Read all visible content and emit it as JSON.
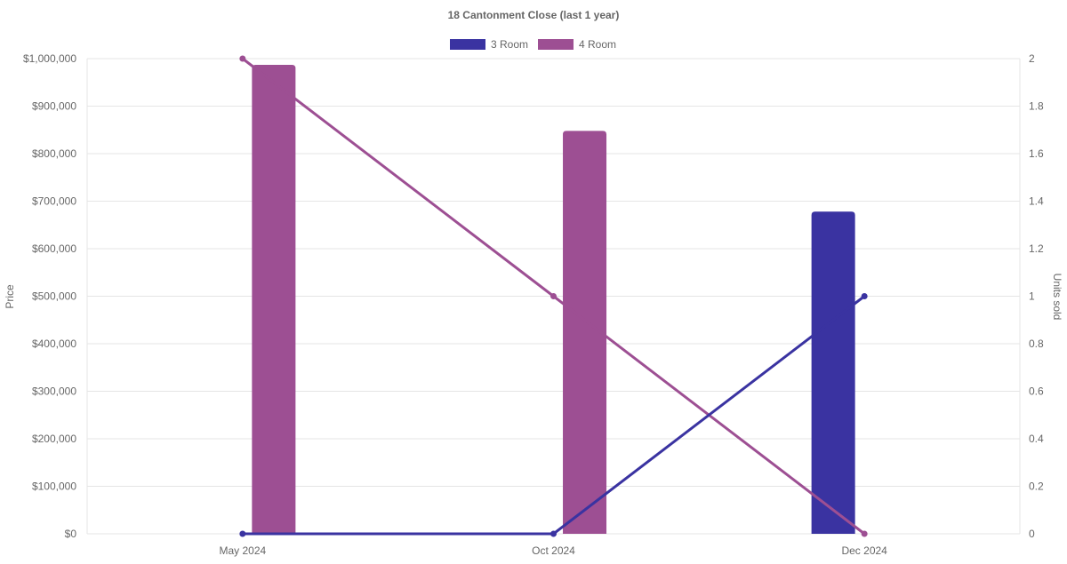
{
  "chart_data": {
    "type": "bar",
    "title": "18 Cantonment Close (last 1 year)",
    "categories": [
      "May 2024",
      "Oct 2024",
      "Dec 2024"
    ],
    "y_left": {
      "label": "Price",
      "min": 0,
      "max": 1000000,
      "step": 100000,
      "tick_labels": [
        "$0",
        "$100,000",
        "$200,000",
        "$300,000",
        "$400,000",
        "$500,000",
        "$600,000",
        "$700,000",
        "$800,000",
        "$900,000",
        "$1,000,000"
      ]
    },
    "y_right": {
      "label": "Units sold",
      "min": 0,
      "max": 2,
      "step": 0.2,
      "tick_labels": [
        "0",
        "0.2",
        "0.4",
        "0.6",
        "0.8",
        "1",
        "1.2",
        "1.4",
        "1.6",
        "1.8",
        "2"
      ]
    },
    "bar_series": [
      {
        "name": "3 Room",
        "color": "#3a33a1",
        "values": [
          null,
          null,
          678000
        ]
      },
      {
        "name": "4 Room",
        "color": "#9d4f93",
        "values": [
          987000,
          848000,
          null
        ]
      }
    ],
    "line_series": [
      {
        "name": "3 Room",
        "color": "#3a33a1",
        "axis": "right",
        "values": [
          0,
          0,
          1
        ]
      },
      {
        "name": "4 Room",
        "color": "#9d4f93",
        "axis": "right",
        "values": [
          2,
          1,
          0
        ]
      }
    ],
    "legend": {
      "position": "top",
      "items": [
        {
          "label": "3 Room",
          "color": "#3a33a1"
        },
        {
          "label": "4 Room",
          "color": "#9d4f93"
        }
      ]
    },
    "grid": true
  }
}
